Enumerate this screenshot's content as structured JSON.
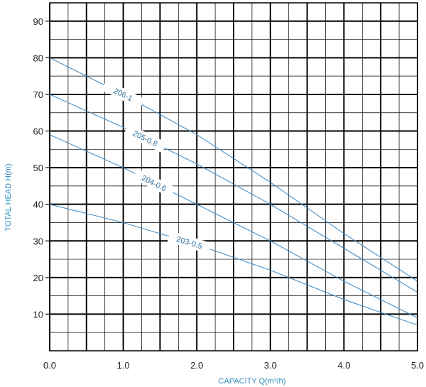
{
  "chart_data": {
    "type": "line",
    "xlabel": "CAPACITY Q(m³/h)",
    "ylabel": "TOTAL HEAD H(m)",
    "xlim": [
      0,
      5
    ],
    "ylim": [
      0,
      95
    ],
    "x_ticks": [
      0,
      1,
      2,
      3,
      4,
      5
    ],
    "x_tick_labels": [
      "0.0",
      "1.0",
      "2.0",
      "3.0",
      "4.0",
      "5.0"
    ],
    "y_ticks": [
      10,
      20,
      30,
      40,
      50,
      60,
      70,
      80,
      90
    ],
    "y_tick_labels": [
      "10",
      "20",
      "30",
      "40",
      "50",
      "60",
      "70",
      "80",
      "90"
    ],
    "grid": true,
    "series": [
      {
        "name": "206-1",
        "x": [
          0,
          1,
          2,
          3,
          4,
          5
        ],
        "y": [
          80,
          70,
          59,
          46,
          32,
          19
        ]
      },
      {
        "name": "205-0.8",
        "x": [
          0,
          1,
          2,
          3,
          4,
          5
        ],
        "y": [
          70,
          61,
          51,
          40,
          28,
          16
        ]
      },
      {
        "name": "204-0.6",
        "x": [
          0,
          1,
          2,
          3,
          4,
          5
        ],
        "y": [
          59,
          50,
          40,
          30,
          19,
          9
        ]
      },
      {
        "name": "203-0.5",
        "x": [
          0,
          1,
          2,
          3,
          4,
          5
        ],
        "y": [
          40,
          35,
          29,
          22,
          14,
          7
        ]
      }
    ]
  },
  "colors": {
    "curve": "#4a8fc4",
    "label": "#2e6fa0",
    "axis_title": "#2e8bc0",
    "grid": "#000000"
  }
}
